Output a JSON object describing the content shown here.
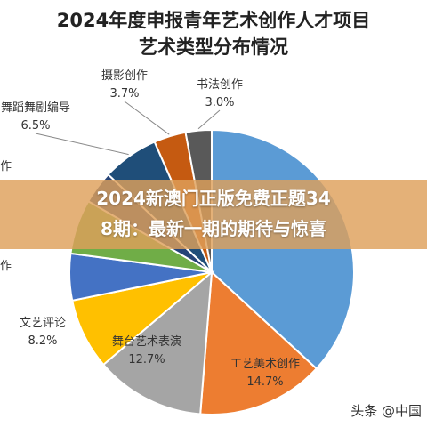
{
  "title_line1": "2024年度申报青年艺术创作人才项目",
  "title_line2": "艺术类型分布情况",
  "banner": {
    "line1": "2024新澳门正版免费正题34",
    "line2": "8期：最新一期的期待与惊喜"
  },
  "watermark": "头条 @中国",
  "chart_data": {
    "type": "pie",
    "title": "2024年度申报青年艺术创作人才项目艺术类型分布情况",
    "slices": [
      {
        "label": "",
        "value": 37.5,
        "color": "#5b9bd5",
        "pct_text": ""
      },
      {
        "label": "工艺美术创作",
        "value": 14.7,
        "color": "#ed7d31",
        "pct_text": "14.7%"
      },
      {
        "label": "舞台艺术表演",
        "value": 12.7,
        "color": "#a5a5a5",
        "pct_text": "12.7%"
      },
      {
        "label": "文艺评论",
        "value": 8.2,
        "color": "#ffc000",
        "pct_text": "8.2%"
      },
      {
        "label": "作",
        "value": 5.4,
        "color": "#4472c4",
        "pct_text": ""
      },
      {
        "label": "",
        "value": 6.3,
        "color": "#70ad47",
        "pct_text": ""
      },
      {
        "label": "作",
        "value": 3.8,
        "color": "#264478",
        "pct_text": ""
      },
      {
        "label": "舞蹈舞剧编导",
        "value": 6.5,
        "color": "#1f4e79",
        "pct_text": "6.5%"
      },
      {
        "label": "摄影创作",
        "value": 3.7,
        "color": "#c55a11",
        "pct_text": "3.7%"
      },
      {
        "label": "书法创作",
        "value": 3.0,
        "color": "#595959",
        "pct_text": "3.0%"
      }
    ]
  }
}
